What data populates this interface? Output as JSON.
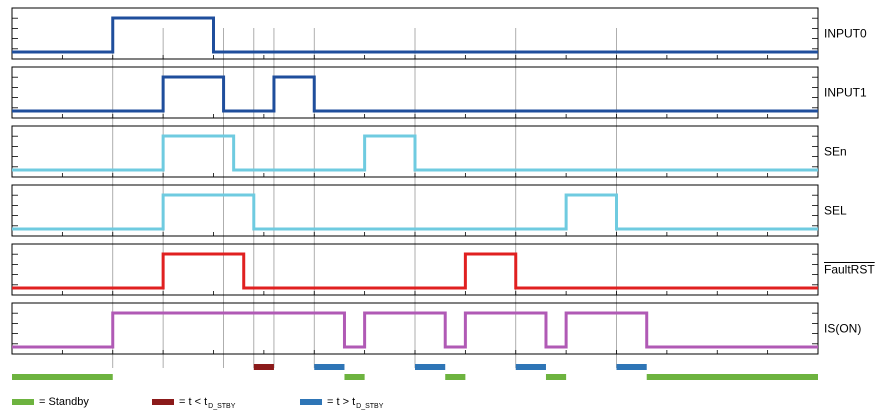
{
  "diagram": {
    "title": "",
    "colors": {
      "input": "#1f4e9c",
      "sel": "#6fcbe0",
      "fault": "#e02020",
      "is_on": "#b05ab5",
      "standby": "#6db33f",
      "short": "#8b1a1a",
      "long": "#2e75b6",
      "grid": "#9a9a9a",
      "frame": "#000000"
    },
    "signals": [
      {
        "name": "INPUT0",
        "color_key": "input",
        "overline": false,
        "levels": [
          [
            0,
            0
          ],
          [
            10,
            1
          ],
          [
            20,
            0
          ],
          [
            80,
            0
          ]
        ]
      },
      {
        "name": "INPUT1",
        "color_key": "input",
        "overline": false,
        "levels": [
          [
            0,
            0
          ],
          [
            15,
            1
          ],
          [
            21,
            0
          ],
          [
            26,
            1
          ],
          [
            30,
            0
          ],
          [
            80,
            0
          ]
        ]
      },
      {
        "name": "SEn",
        "color_key": "sel",
        "overline": false,
        "levels": [
          [
            0,
            0
          ],
          [
            15,
            1
          ],
          [
            22,
            0
          ],
          [
            35,
            1
          ],
          [
            40,
            0
          ],
          [
            80,
            0
          ]
        ]
      },
      {
        "name": "SEL",
        "color_key": "sel",
        "overline": false,
        "levels": [
          [
            0,
            0
          ],
          [
            15,
            1
          ],
          [
            24,
            0
          ],
          [
            55,
            1
          ],
          [
            60,
            0
          ],
          [
            80,
            0
          ]
        ]
      },
      {
        "name": "FaultRST",
        "color_key": "fault",
        "overline": true,
        "levels": [
          [
            0,
            0
          ],
          [
            15,
            1
          ],
          [
            23,
            0
          ],
          [
            45,
            1
          ],
          [
            50,
            0
          ],
          [
            80,
            0
          ]
        ]
      },
      {
        "name": "IS(ON)",
        "color_key": "is_on",
        "overline": false,
        "levels": [
          [
            0,
            0
          ],
          [
            10,
            1
          ],
          [
            33,
            0
          ],
          [
            35,
            1
          ],
          [
            43,
            0
          ],
          [
            45,
            1
          ],
          [
            53,
            0
          ],
          [
            55,
            1
          ],
          [
            63,
            0
          ],
          [
            80,
            0
          ]
        ]
      }
    ],
    "time_span": [
      0,
      80
    ],
    "guide_times": [
      10,
      15,
      21,
      24,
      26,
      30,
      40,
      50,
      60
    ],
    "state_bars": [
      {
        "type": "standby",
        "start": 0,
        "end": 10,
        "row": 2
      },
      {
        "type": "short",
        "start": 24,
        "end": 26,
        "row": 1
      },
      {
        "type": "long",
        "start": 30,
        "end": 33,
        "row": 1
      },
      {
        "type": "standby",
        "start": 33,
        "end": 35,
        "row": 2
      },
      {
        "type": "long",
        "start": 40,
        "end": 43,
        "row": 1
      },
      {
        "type": "standby",
        "start": 43,
        "end": 45,
        "row": 2
      },
      {
        "type": "long",
        "start": 50,
        "end": 53,
        "row": 1
      },
      {
        "type": "standby",
        "start": 53,
        "end": 55,
        "row": 2
      },
      {
        "type": "long",
        "start": 60,
        "end": 63,
        "row": 1
      },
      {
        "type": "standby",
        "start": 63,
        "end": 80,
        "row": 2
      }
    ],
    "legend": [
      {
        "type": "standby",
        "text": "= Standby",
        "sub": ""
      },
      {
        "type": "short",
        "text": "= t < t",
        "sub": "D_STBY"
      },
      {
        "type": "long",
        "text": "= t > t",
        "sub": "D_STBY"
      }
    ]
  }
}
